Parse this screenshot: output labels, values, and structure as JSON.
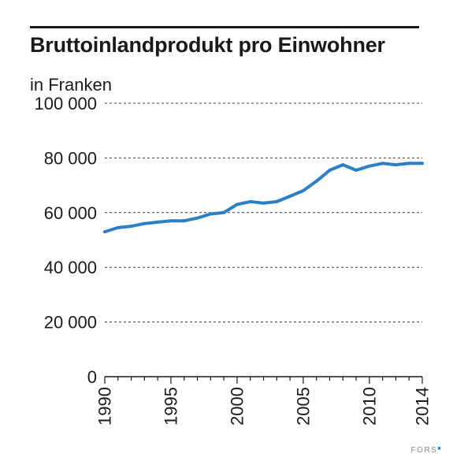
{
  "brand": {
    "name": "FORS",
    "mark_color": "#2a7fc6"
  },
  "chart_data": {
    "type": "line",
    "title": "Bruttoinlandprodukt pro Einwohner",
    "ylabel": "in Franken",
    "xlabel": "",
    "ylim": [
      0,
      100000
    ],
    "xlim": [
      1990,
      2014
    ],
    "yticks": [
      0,
      20000,
      40000,
      60000,
      80000,
      100000
    ],
    "ytick_labels": [
      "0",
      "20 000",
      "40 000",
      "60 000",
      "80 000",
      "100 000"
    ],
    "xticks": [
      1990,
      1995,
      2000,
      2005,
      2010,
      2014
    ],
    "xtick_labels": [
      "1990",
      "1995",
      "2000",
      "2005",
      "2010",
      "2014"
    ],
    "grid": "horizontal dashed",
    "line_color": "#2a7fc6",
    "series": [
      {
        "x": [
          1990,
          1991,
          1992,
          1993,
          1994,
          1995,
          1996,
          1997,
          1998,
          1999,
          2000,
          2001,
          2002,
          2003,
          2004,
          2005,
          2006,
          2007,
          2008,
          2009,
          2010,
          2011,
          2012,
          2013,
          2014
        ],
        "values": [
          53000,
          54500,
          55000,
          56000,
          56500,
          57000,
          57000,
          58000,
          59500,
          60000,
          63000,
          64000,
          63500,
          64000,
          66000,
          68000,
          71500,
          75500,
          77500,
          75500,
          77000,
          78000,
          77500,
          78000,
          78000
        ]
      }
    ]
  }
}
